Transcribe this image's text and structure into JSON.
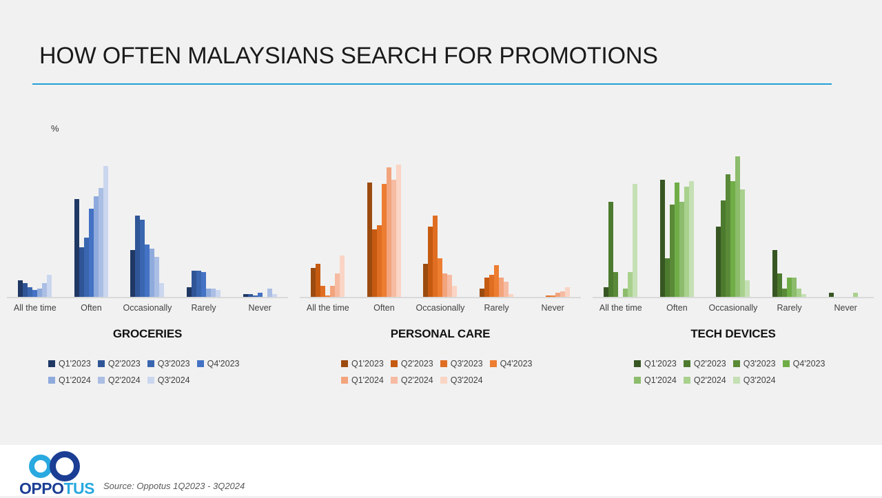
{
  "header": {
    "title": "HOW OFTEN MALAYSIANS SEARCH FOR PROMOTIONS",
    "underline_color": "#239FD8"
  },
  "axis_unit_label": "%",
  "chart_data": [
    {
      "type": "bar",
      "title": "GROCERIES",
      "unit": "%",
      "categories": [
        "All the time",
        "Often",
        "Occasionally",
        "Rarely",
        "Never"
      ],
      "colors": [
        "#1F3864",
        "#2F5597",
        "#3A66B0",
        "#4472C4",
        "#8FAADC",
        "#ABBEE4",
        "#CBD6EF"
      ],
      "series": [
        {
          "name": "Q1'2023",
          "values": [
            6,
            35.5,
            17,
            3.5,
            1
          ]
        },
        {
          "name": "Q2'2023",
          "values": [
            5,
            18,
            29.5,
            9.5,
            1
          ]
        },
        {
          "name": "Q3'2023",
          "values": [
            3.5,
            21.5,
            28,
            9.5,
            0.5
          ]
        },
        {
          "name": "Q4'2023",
          "values": [
            2.5,
            32,
            19,
            9,
            1.5
          ]
        },
        {
          "name": "Q1'2024",
          "values": [
            3,
            36.5,
            17.5,
            3,
            0
          ]
        },
        {
          "name": "Q2'2024",
          "values": [
            5,
            39.5,
            14.5,
            3,
            3
          ]
        },
        {
          "name": "Q3'2024",
          "values": [
            8,
            47.5,
            5,
            2.5,
            1
          ]
        }
      ],
      "ylim": [
        0,
        60
      ],
      "grid": false,
      "legend_position": "bottom"
    },
    {
      "type": "bar",
      "title": "PERSONAL CARE",
      "unit": "%",
      "categories": [
        "All the time",
        "Often",
        "Occasionally",
        "Rarely",
        "Never"
      ],
      "colors": [
        "#9C4B10",
        "#C55A11",
        "#E06E22",
        "#ED7D31",
        "#F2A47D",
        "#F6BBA2",
        "#FAD4C4"
      ],
      "series": [
        {
          "name": "Q1'2023",
          "values": [
            10.5,
            41.5,
            12,
            3,
            0
          ]
        },
        {
          "name": "Q2'2023",
          "values": [
            12,
            24.5,
            25.5,
            7,
            0
          ]
        },
        {
          "name": "Q3'2023",
          "values": [
            4,
            26,
            29.5,
            8,
            0.5
          ]
        },
        {
          "name": "Q4'2023",
          "values": [
            0.5,
            41,
            14,
            11.5,
            0.5
          ]
        },
        {
          "name": "Q1'2024",
          "values": [
            4,
            47,
            8.5,
            7,
            1.5
          ]
        },
        {
          "name": "Q2'2024",
          "values": [
            8.5,
            42.5,
            8,
            5.5,
            2
          ]
        },
        {
          "name": "Q3'2024",
          "values": [
            15,
            48,
            4,
            1,
            3.5
          ]
        }
      ],
      "ylim": [
        0,
        60
      ],
      "grid": false,
      "legend_position": "bottom"
    },
    {
      "type": "bar",
      "title": "TECH DEVICES",
      "unit": "%",
      "categories": [
        "All the time",
        "Often",
        "Occasionally",
        "Rarely",
        "Never"
      ],
      "colors": [
        "#375623",
        "#4C7A2E",
        "#5A8A38",
        "#70AD47",
        "#8CBC6C",
        "#A9D18E",
        "#C5E0B4"
      ],
      "series": [
        {
          "name": "Q1'2023",
          "values": [
            3.5,
            42.5,
            25.5,
            17,
            1.5
          ]
        },
        {
          "name": "Q2'2023",
          "values": [
            34.5,
            14,
            35,
            8.5,
            0
          ]
        },
        {
          "name": "Q3'2023",
          "values": [
            9,
            33.5,
            44.5,
            3,
            0
          ]
        },
        {
          "name": "Q4'2023",
          "values": [
            0,
            41.5,
            42,
            7,
            0
          ]
        },
        {
          "name": "Q1'2024",
          "values": [
            3,
            34.5,
            51,
            7,
            0
          ]
        },
        {
          "name": "Q2'2024",
          "values": [
            9,
            40,
            39,
            3,
            1.5
          ]
        },
        {
          "name": "Q3'2024",
          "values": [
            41,
            42,
            6,
            1,
            0
          ]
        }
      ],
      "ylim": [
        0,
        60
      ],
      "grid": false,
      "legend_position": "bottom"
    }
  ],
  "footer": {
    "logo_text_primary": "OPPO",
    "logo_text_secondary": "TUS",
    "source": "Source: Oppotus 1Q2023 - 3Q2024"
  }
}
